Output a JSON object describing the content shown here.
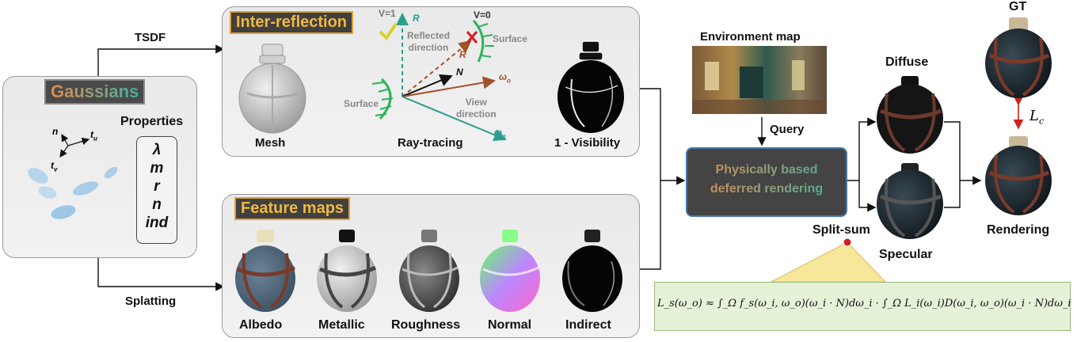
{
  "colors": {
    "accent_orange": "#e0a030",
    "teal": "#2a9d8f",
    "green": "#2cb35a",
    "brown": "#a0522d",
    "red": "#d21f1f",
    "formula_bg": "#e6f2d8"
  },
  "gaussians": {
    "title": "Gaussians",
    "properties_label": "Properties",
    "properties": [
      "λ",
      "m",
      "r",
      "n",
      "ind"
    ],
    "axes": {
      "n": "n",
      "tu": "t",
      "tu_sub": "u",
      "tv": "t",
      "tv_sub": "v"
    }
  },
  "edges": {
    "tsdf": "TSDF",
    "splatting": "Splatting",
    "query": "Query",
    "split_sum": "Split-sum",
    "loss": "L",
    "loss_sub": "c"
  },
  "inter_reflection": {
    "title": "Inter-reflection",
    "mesh": "Mesh",
    "ray_tracing": "Ray-tracing",
    "visibility": "1 - Visibility",
    "v1": "V=1",
    "v0": "V=0",
    "R": "R",
    "reflected_direction": "Reflected\ndirection",
    "surface_top": "Surface",
    "surface_left": "Surface",
    "N": "N",
    "omega_o": "ω",
    "omega_o_sub": "o",
    "view_direction": "View\ndirection"
  },
  "feature_maps": {
    "title": "Feature maps",
    "labels": [
      "Albedo",
      "Metallic",
      "Roughness",
      "Normal",
      "Indirect"
    ]
  },
  "environment_map": "Environment map",
  "pbr": {
    "line1": "Physically based",
    "line2": "deferred rendering"
  },
  "outputs": {
    "diffuse": "Diffuse",
    "specular": "Specular",
    "gt": "GT",
    "rendering": "Rendering"
  },
  "formula": "L_s(ω_o) ≈ ∫_Ω f_s(ω_i, ω_o)(ω_i · N)dω_i · ∫_Ω L_i(ω_i)D(ω_i, ω_o)(ω_i · N)dω_i"
}
